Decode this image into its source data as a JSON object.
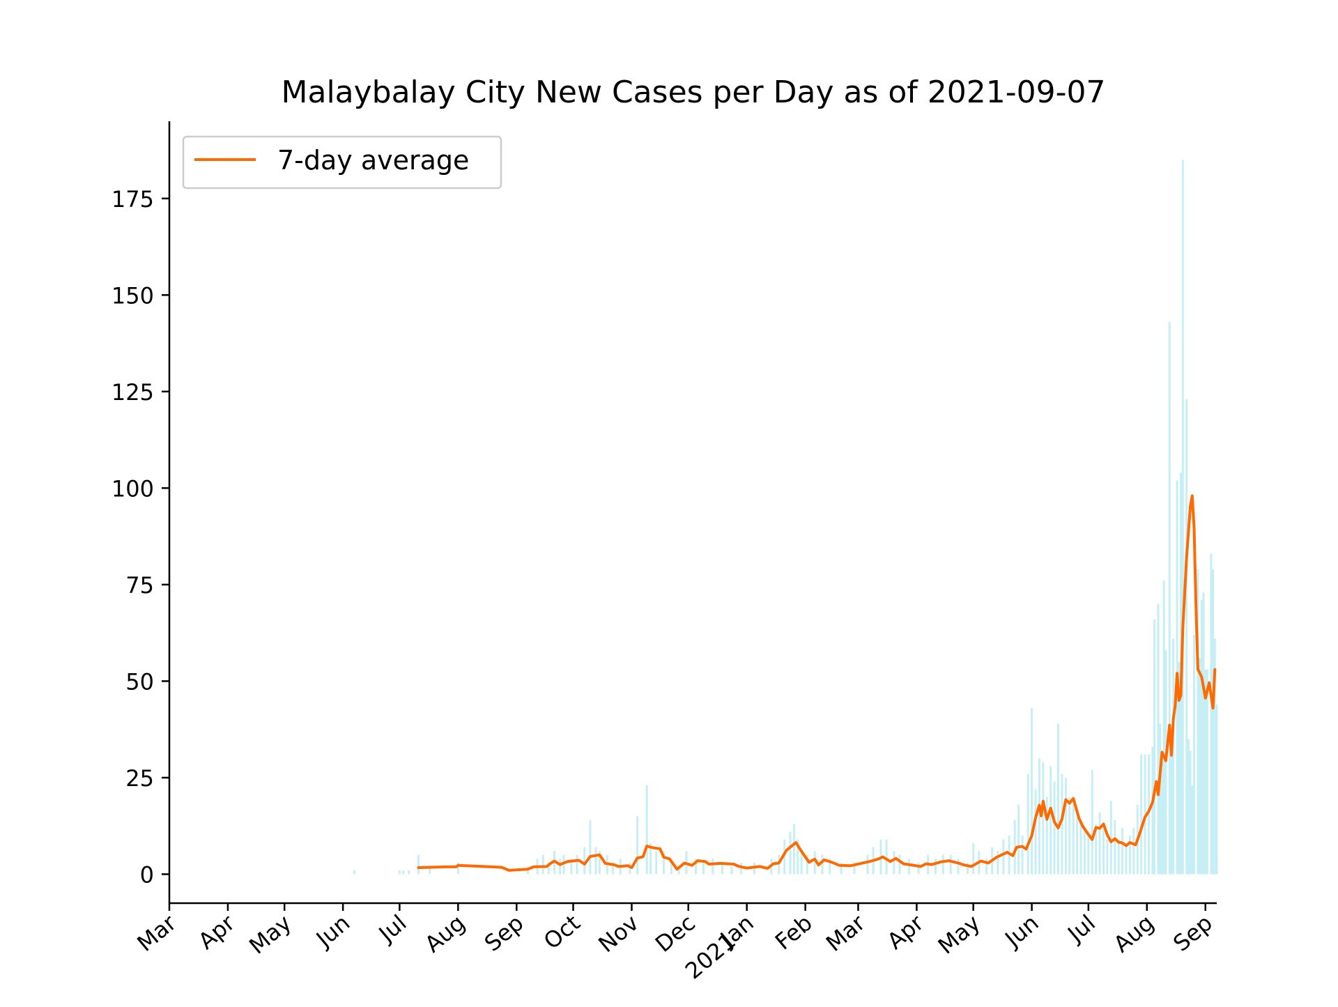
{
  "chart_data": {
    "type": "line",
    "title": "Malaybalay City New Cases per Day as of 2021-09-07",
    "xlabel": "",
    "ylabel": "",
    "x_range": [
      "2020-03-01",
      "2021-09-07"
    ],
    "ylim": [
      -7.5,
      195
    ],
    "yticks": [
      0,
      25,
      50,
      75,
      100,
      125,
      150,
      175
    ],
    "xticks": [
      {
        "date": "2020-03-01",
        "label": "Mar"
      },
      {
        "date": "2020-04-01",
        "label": "Apr"
      },
      {
        "date": "2020-05-01",
        "label": "May"
      },
      {
        "date": "2020-06-01",
        "label": "Jun"
      },
      {
        "date": "2020-07-01",
        "label": "Jul"
      },
      {
        "date": "2020-08-01",
        "label": "Aug"
      },
      {
        "date": "2020-09-01",
        "label": "Sep"
      },
      {
        "date": "2020-10-01",
        "label": "Oct"
      },
      {
        "date": "2020-11-01",
        "label": "Nov"
      },
      {
        "date": "2020-12-01",
        "label": "Dec"
      },
      {
        "date": "2021-01-01",
        "label": "Jan\n2021"
      },
      {
        "date": "2021-02-01",
        "label": "Feb"
      },
      {
        "date": "2021-03-01",
        "label": "Mar"
      },
      {
        "date": "2021-04-01",
        "label": "Apr"
      },
      {
        "date": "2021-05-01",
        "label": "May"
      },
      {
        "date": "2021-06-01",
        "label": "Jun"
      },
      {
        "date": "2021-07-01",
        "label": "Jul"
      },
      {
        "date": "2021-08-01",
        "label": "Aug"
      },
      {
        "date": "2021-09-01",
        "label": "Sep"
      }
    ],
    "grid": false,
    "legend_position": "top-left",
    "colors": {
      "average": "#ff6a00",
      "daily": "#c6eef5"
    },
    "series": [
      {
        "name": "7-day average",
        "style": "line",
        "points": [
          [
            "2020-07-11",
            1.7
          ],
          [
            "2020-07-25",
            1.9
          ],
          [
            "2020-07-31",
            1.9
          ],
          [
            "2020-08-01",
            2.3
          ],
          [
            "2020-08-24",
            1.8
          ],
          [
            "2020-08-28",
            1.0
          ],
          [
            "2020-09-07",
            1.3
          ],
          [
            "2020-09-10",
            1.9
          ],
          [
            "2020-09-17",
            2.0
          ],
          [
            "2020-09-19",
            2.8
          ],
          [
            "2020-09-21",
            3.4
          ],
          [
            "2020-09-24",
            2.5
          ],
          [
            "2020-09-28",
            3.3
          ],
          [
            "2020-10-04",
            3.6
          ],
          [
            "2020-10-07",
            2.6
          ],
          [
            "2020-10-10",
            4.6
          ],
          [
            "2020-10-15",
            5.0
          ],
          [
            "2020-10-18",
            2.8
          ],
          [
            "2020-10-23",
            2.4
          ],
          [
            "2020-10-25",
            2.0
          ],
          [
            "2020-10-30",
            2.2
          ],
          [
            "2020-11-01",
            1.7
          ],
          [
            "2020-11-04",
            4.2
          ],
          [
            "2020-11-07",
            4.5
          ],
          [
            "2020-11-09",
            7.3
          ],
          [
            "2020-11-11",
            7.0
          ],
          [
            "2020-11-13",
            6.8
          ],
          [
            "2020-11-16",
            6.6
          ],
          [
            "2020-11-18",
            4.4
          ],
          [
            "2020-11-21",
            4.0
          ],
          [
            "2020-11-25",
            1.3
          ],
          [
            "2020-11-29",
            2.9
          ],
          [
            "2020-12-03",
            2.3
          ],
          [
            "2020-12-06",
            3.5
          ],
          [
            "2020-12-10",
            3.3
          ],
          [
            "2020-12-12",
            2.6
          ],
          [
            "2020-12-18",
            2.8
          ],
          [
            "2020-12-25",
            2.6
          ],
          [
            "2020-12-28",
            2.0
          ],
          [
            "2021-01-01",
            1.6
          ],
          [
            "2021-01-08",
            2.0
          ],
          [
            "2021-01-12",
            1.5
          ],
          [
            "2021-01-15",
            2.7
          ],
          [
            "2021-01-18",
            2.9
          ],
          [
            "2021-01-22",
            6.2
          ],
          [
            "2021-01-25",
            7.4
          ],
          [
            "2021-01-27",
            8.2
          ],
          [
            "2021-01-30",
            5.9
          ],
          [
            "2021-02-03",
            3.1
          ],
          [
            "2021-02-06",
            3.9
          ],
          [
            "2021-02-08",
            2.4
          ],
          [
            "2021-02-11",
            3.7
          ],
          [
            "2021-02-15",
            3.1
          ],
          [
            "2021-02-19",
            2.3
          ],
          [
            "2021-02-25",
            2.2
          ],
          [
            "2021-03-08",
            3.4
          ],
          [
            "2021-03-12",
            4.0
          ],
          [
            "2021-03-14",
            4.5
          ],
          [
            "2021-03-18",
            3.3
          ],
          [
            "2021-03-21",
            4.1
          ],
          [
            "2021-03-25",
            2.7
          ],
          [
            "2021-03-29",
            2.4
          ],
          [
            "2021-04-03",
            2.0
          ],
          [
            "2021-04-06",
            2.7
          ],
          [
            "2021-04-09",
            2.5
          ],
          [
            "2021-04-14",
            3.2
          ],
          [
            "2021-04-18",
            3.5
          ],
          [
            "2021-04-23",
            2.9
          ],
          [
            "2021-04-26",
            2.4
          ],
          [
            "2021-04-30",
            2.0
          ],
          [
            "2021-05-05",
            3.4
          ],
          [
            "2021-05-09",
            2.9
          ],
          [
            "2021-05-13",
            4.3
          ],
          [
            "2021-05-16",
            5.0
          ],
          [
            "2021-05-19",
            5.7
          ],
          [
            "2021-05-22",
            4.8
          ],
          [
            "2021-05-24",
            7.0
          ],
          [
            "2021-05-27",
            7.2
          ],
          [
            "2021-05-29",
            6.5
          ],
          [
            "2021-06-01",
            10.0
          ],
          [
            "2021-06-03",
            14.6
          ],
          [
            "2021-06-05",
            17.9
          ],
          [
            "2021-06-06",
            15.1
          ],
          [
            "2021-06-07",
            18.9
          ],
          [
            "2021-06-09",
            14.2
          ],
          [
            "2021-06-11",
            17.1
          ],
          [
            "2021-06-13",
            13.5
          ],
          [
            "2021-06-15",
            12.0
          ],
          [
            "2021-06-17",
            14.3
          ],
          [
            "2021-06-19",
            19.3
          ],
          [
            "2021-06-21",
            18.4
          ],
          [
            "2021-06-23",
            19.6
          ],
          [
            "2021-06-26",
            14.5
          ],
          [
            "2021-06-28",
            12.4
          ],
          [
            "2021-07-01",
            10.3
          ],
          [
            "2021-07-03",
            9.0
          ],
          [
            "2021-07-05",
            12.1
          ],
          [
            "2021-07-07",
            11.9
          ],
          [
            "2021-07-09",
            13.0
          ],
          [
            "2021-07-11",
            10.2
          ],
          [
            "2021-07-13",
            8.4
          ],
          [
            "2021-07-15",
            9.2
          ],
          [
            "2021-07-17",
            8.3
          ],
          [
            "2021-07-19",
            8.1
          ],
          [
            "2021-07-21",
            7.4
          ],
          [
            "2021-07-23",
            8.2
          ],
          [
            "2021-07-26",
            7.6
          ],
          [
            "2021-07-28",
            10.3
          ],
          [
            "2021-07-31",
            14.8
          ],
          [
            "2021-08-02",
            16.3
          ],
          [
            "2021-08-04",
            18.6
          ],
          [
            "2021-08-06",
            24.0
          ],
          [
            "2021-08-07",
            20.6
          ],
          [
            "2021-08-09",
            31.6
          ],
          [
            "2021-08-11",
            29.4
          ],
          [
            "2021-08-13",
            38.6
          ],
          [
            "2021-08-14",
            30.8
          ],
          [
            "2021-08-15",
            40.2
          ],
          [
            "2021-08-16",
            43.7
          ],
          [
            "2021-08-17",
            52.0
          ],
          [
            "2021-08-18",
            45.0
          ],
          [
            "2021-08-19",
            46.3
          ],
          [
            "2021-08-20",
            63.6
          ],
          [
            "2021-08-22",
            82.0
          ],
          [
            "2021-08-24",
            95.3
          ],
          [
            "2021-08-25",
            98.0
          ],
          [
            "2021-08-26",
            89.7
          ],
          [
            "2021-08-27",
            69.4
          ],
          [
            "2021-08-28",
            53.1
          ],
          [
            "2021-08-30",
            51.1
          ],
          [
            "2021-09-01",
            45.6
          ],
          [
            "2021-09-03",
            49.6
          ],
          [
            "2021-09-05",
            43.0
          ],
          [
            "2021-09-06",
            53.0
          ]
        ]
      }
    ],
    "daily_bars": [
      [
        "2020-06-07",
        1
      ],
      [
        "2020-07-01",
        1
      ],
      [
        "2020-07-03",
        1
      ],
      [
        "2020-07-06",
        1
      ],
      [
        "2020-07-11",
        5
      ],
      [
        "2020-07-17",
        2
      ],
      [
        "2020-08-01",
        3
      ],
      [
        "2020-09-07",
        2
      ],
      [
        "2020-09-12",
        4
      ],
      [
        "2020-09-15",
        5
      ],
      [
        "2020-09-18",
        3
      ],
      [
        "2020-09-21",
        6
      ],
      [
        "2020-09-24",
        4
      ],
      [
        "2020-09-26",
        5
      ],
      [
        "2020-09-30",
        4
      ],
      [
        "2020-10-03",
        5
      ],
      [
        "2020-10-07",
        7
      ],
      [
        "2020-10-10",
        14
      ],
      [
        "2020-10-13",
        7
      ],
      [
        "2020-10-15",
        6
      ],
      [
        "2020-10-19",
        5
      ],
      [
        "2020-10-22",
        3
      ],
      [
        "2020-10-26",
        4
      ],
      [
        "2020-10-31",
        3
      ],
      [
        "2020-11-04",
        15
      ],
      [
        "2020-11-09",
        23
      ],
      [
        "2020-11-11",
        8
      ],
      [
        "2020-11-14",
        6
      ],
      [
        "2020-11-18",
        6
      ],
      [
        "2020-11-22",
        4
      ],
      [
        "2020-11-26",
        2
      ],
      [
        "2020-11-30",
        6
      ],
      [
        "2020-12-05",
        4
      ],
      [
        "2020-12-09",
        3
      ],
      [
        "2020-12-14",
        4
      ],
      [
        "2020-12-19",
        3
      ],
      [
        "2020-12-24",
        2
      ],
      [
        "2020-12-29",
        3
      ],
      [
        "2021-01-05",
        3
      ],
      [
        "2021-01-14",
        4
      ],
      [
        "2021-01-18",
        5
      ],
      [
        "2021-01-21",
        9
      ],
      [
        "2021-01-24",
        11
      ],
      [
        "2021-01-26",
        13
      ],
      [
        "2021-01-28",
        9
      ],
      [
        "2021-01-30",
        6
      ],
      [
        "2021-02-02",
        5
      ],
      [
        "2021-02-06",
        6
      ],
      [
        "2021-02-10",
        5
      ],
      [
        "2021-02-14",
        4
      ],
      [
        "2021-02-20",
        3
      ],
      [
        "2021-02-27",
        3
      ],
      [
        "2021-03-06",
        5
      ],
      [
        "2021-03-09",
        7
      ],
      [
        "2021-03-13",
        9
      ],
      [
        "2021-03-16",
        9
      ],
      [
        "2021-03-20",
        6
      ],
      [
        "2021-03-23",
        5
      ],
      [
        "2021-03-28",
        4
      ],
      [
        "2021-04-02",
        3
      ],
      [
        "2021-04-07",
        5
      ],
      [
        "2021-04-11",
        4
      ],
      [
        "2021-04-15",
        5
      ],
      [
        "2021-04-19",
        5
      ],
      [
        "2021-04-23",
        4
      ],
      [
        "2021-04-28",
        3
      ],
      [
        "2021-05-01",
        8
      ],
      [
        "2021-05-04",
        6
      ],
      [
        "2021-05-08",
        4
      ],
      [
        "2021-05-11",
        7
      ],
      [
        "2021-05-14",
        6
      ],
      [
        "2021-05-17",
        9
      ],
      [
        "2021-05-20",
        10
      ],
      [
        "2021-05-23",
        14
      ],
      [
        "2021-05-25",
        18
      ],
      [
        "2021-05-27",
        10
      ],
      [
        "2021-05-30",
        26
      ],
      [
        "2021-06-01",
        43
      ],
      [
        "2021-06-03",
        22
      ],
      [
        "2021-06-05",
        30
      ],
      [
        "2021-06-07",
        29
      ],
      [
        "2021-06-09",
        20
      ],
      [
        "2021-06-11",
        28
      ],
      [
        "2021-06-13",
        24
      ],
      [
        "2021-06-15",
        39
      ],
      [
        "2021-06-17",
        26
      ],
      [
        "2021-06-19",
        25
      ],
      [
        "2021-06-21",
        20
      ],
      [
        "2021-06-23",
        18
      ],
      [
        "2021-06-25",
        15
      ],
      [
        "2021-06-27",
        14
      ],
      [
        "2021-06-29",
        12
      ],
      [
        "2021-07-01",
        10
      ],
      [
        "2021-07-03",
        27
      ],
      [
        "2021-07-05",
        13
      ],
      [
        "2021-07-07",
        16
      ],
      [
        "2021-07-09",
        12
      ],
      [
        "2021-07-11",
        9
      ],
      [
        "2021-07-13",
        19
      ],
      [
        "2021-07-15",
        14
      ],
      [
        "2021-07-17",
        9
      ],
      [
        "2021-07-19",
        12
      ],
      [
        "2021-07-21",
        8
      ],
      [
        "2021-07-23",
        10
      ],
      [
        "2021-07-25",
        12
      ],
      [
        "2021-07-27",
        18
      ],
      [
        "2021-07-29",
        31
      ],
      [
        "2021-07-31",
        31
      ],
      [
        "2021-08-02",
        31
      ],
      [
        "2021-08-04",
        33
      ],
      [
        "2021-08-05",
        66
      ],
      [
        "2021-08-07",
        70
      ],
      [
        "2021-08-08",
        39
      ],
      [
        "2021-08-09",
        29
      ],
      [
        "2021-08-10",
        76
      ],
      [
        "2021-08-11",
        58
      ],
      [
        "2021-08-13",
        143
      ],
      [
        "2021-08-14",
        35
      ],
      [
        "2021-08-15",
        61
      ],
      [
        "2021-08-17",
        102
      ],
      [
        "2021-08-18",
        55
      ],
      [
        "2021-08-19",
        104
      ],
      [
        "2021-08-20",
        185
      ],
      [
        "2021-08-22",
        123
      ],
      [
        "2021-08-23",
        35
      ],
      [
        "2021-08-24",
        32
      ],
      [
        "2021-08-25",
        23
      ],
      [
        "2021-08-26",
        62
      ],
      [
        "2021-08-28",
        79
      ],
      [
        "2021-08-29",
        56
      ],
      [
        "2021-08-30",
        71
      ],
      [
        "2021-08-31",
        73
      ],
      [
        "2021-09-01",
        53
      ],
      [
        "2021-09-02",
        53
      ],
      [
        "2021-09-04",
        83
      ],
      [
        "2021-09-05",
        79
      ],
      [
        "2021-09-06",
        61
      ],
      [
        "2021-09-07",
        44
      ]
    ]
  }
}
